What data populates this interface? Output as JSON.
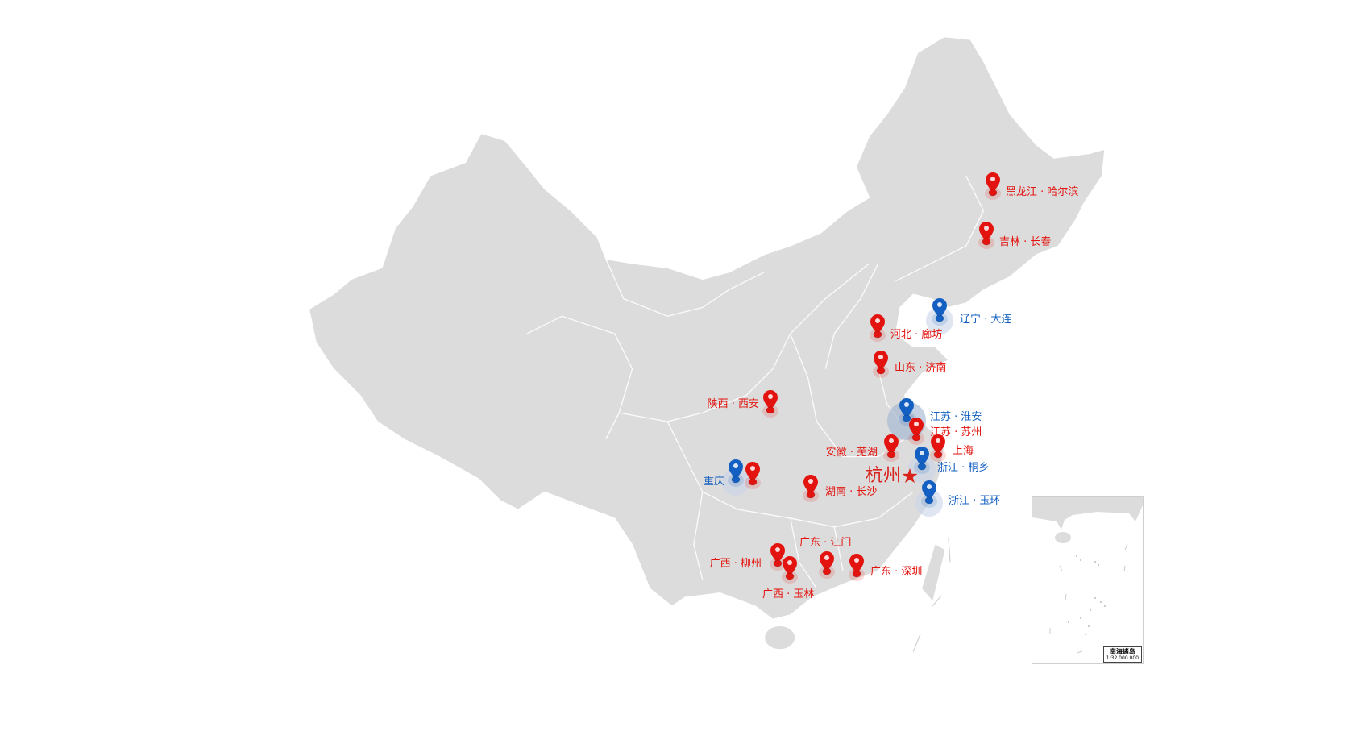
{
  "map": {
    "region": "China",
    "colors": {
      "land": "#dcdcdc",
      "border": "#ffffff",
      "red_marker": "#e3140f",
      "blue_marker": "#1360c2",
      "capital_star": "#d9231d"
    },
    "center_city": {
      "label": "杭州",
      "icon": "star-icon"
    },
    "markers": [
      {
        "label": "黑龙江 · 哈尔滨",
        "color": "red"
      },
      {
        "label": "吉林 · 长春",
        "color": "red"
      },
      {
        "label": "辽宁 · 大连",
        "color": "blue"
      },
      {
        "label": "河北 · 廊坊",
        "color": "red"
      },
      {
        "label": "山东 · 济南",
        "color": "red"
      },
      {
        "label": "陕西 · 西安",
        "color": "red"
      },
      {
        "label": "江苏 · 淮安",
        "color": "blue"
      },
      {
        "label": "江苏 · 苏州",
        "color": "red"
      },
      {
        "label": "安徽 · 芜湖",
        "color": "red"
      },
      {
        "label": "上海",
        "color": "red"
      },
      {
        "label": "浙江 · 桐乡",
        "color": "blue"
      },
      {
        "label": "浙江 · 玉环",
        "color": "blue"
      },
      {
        "label": "重庆",
        "color": "blue"
      },
      {
        "label": "",
        "color": "red"
      },
      {
        "label": "湖南 · 长沙",
        "color": "red"
      },
      {
        "label": "广东 · 江门",
        "color": "red"
      },
      {
        "label": "广西 · 柳州",
        "color": "red"
      },
      {
        "label": "广西 · 玉林",
        "color": "red"
      },
      {
        "label": "广东 · 深圳",
        "color": "red"
      }
    ],
    "inset": {
      "title": "南海诸岛",
      "scale": "1:32 000 000"
    }
  }
}
